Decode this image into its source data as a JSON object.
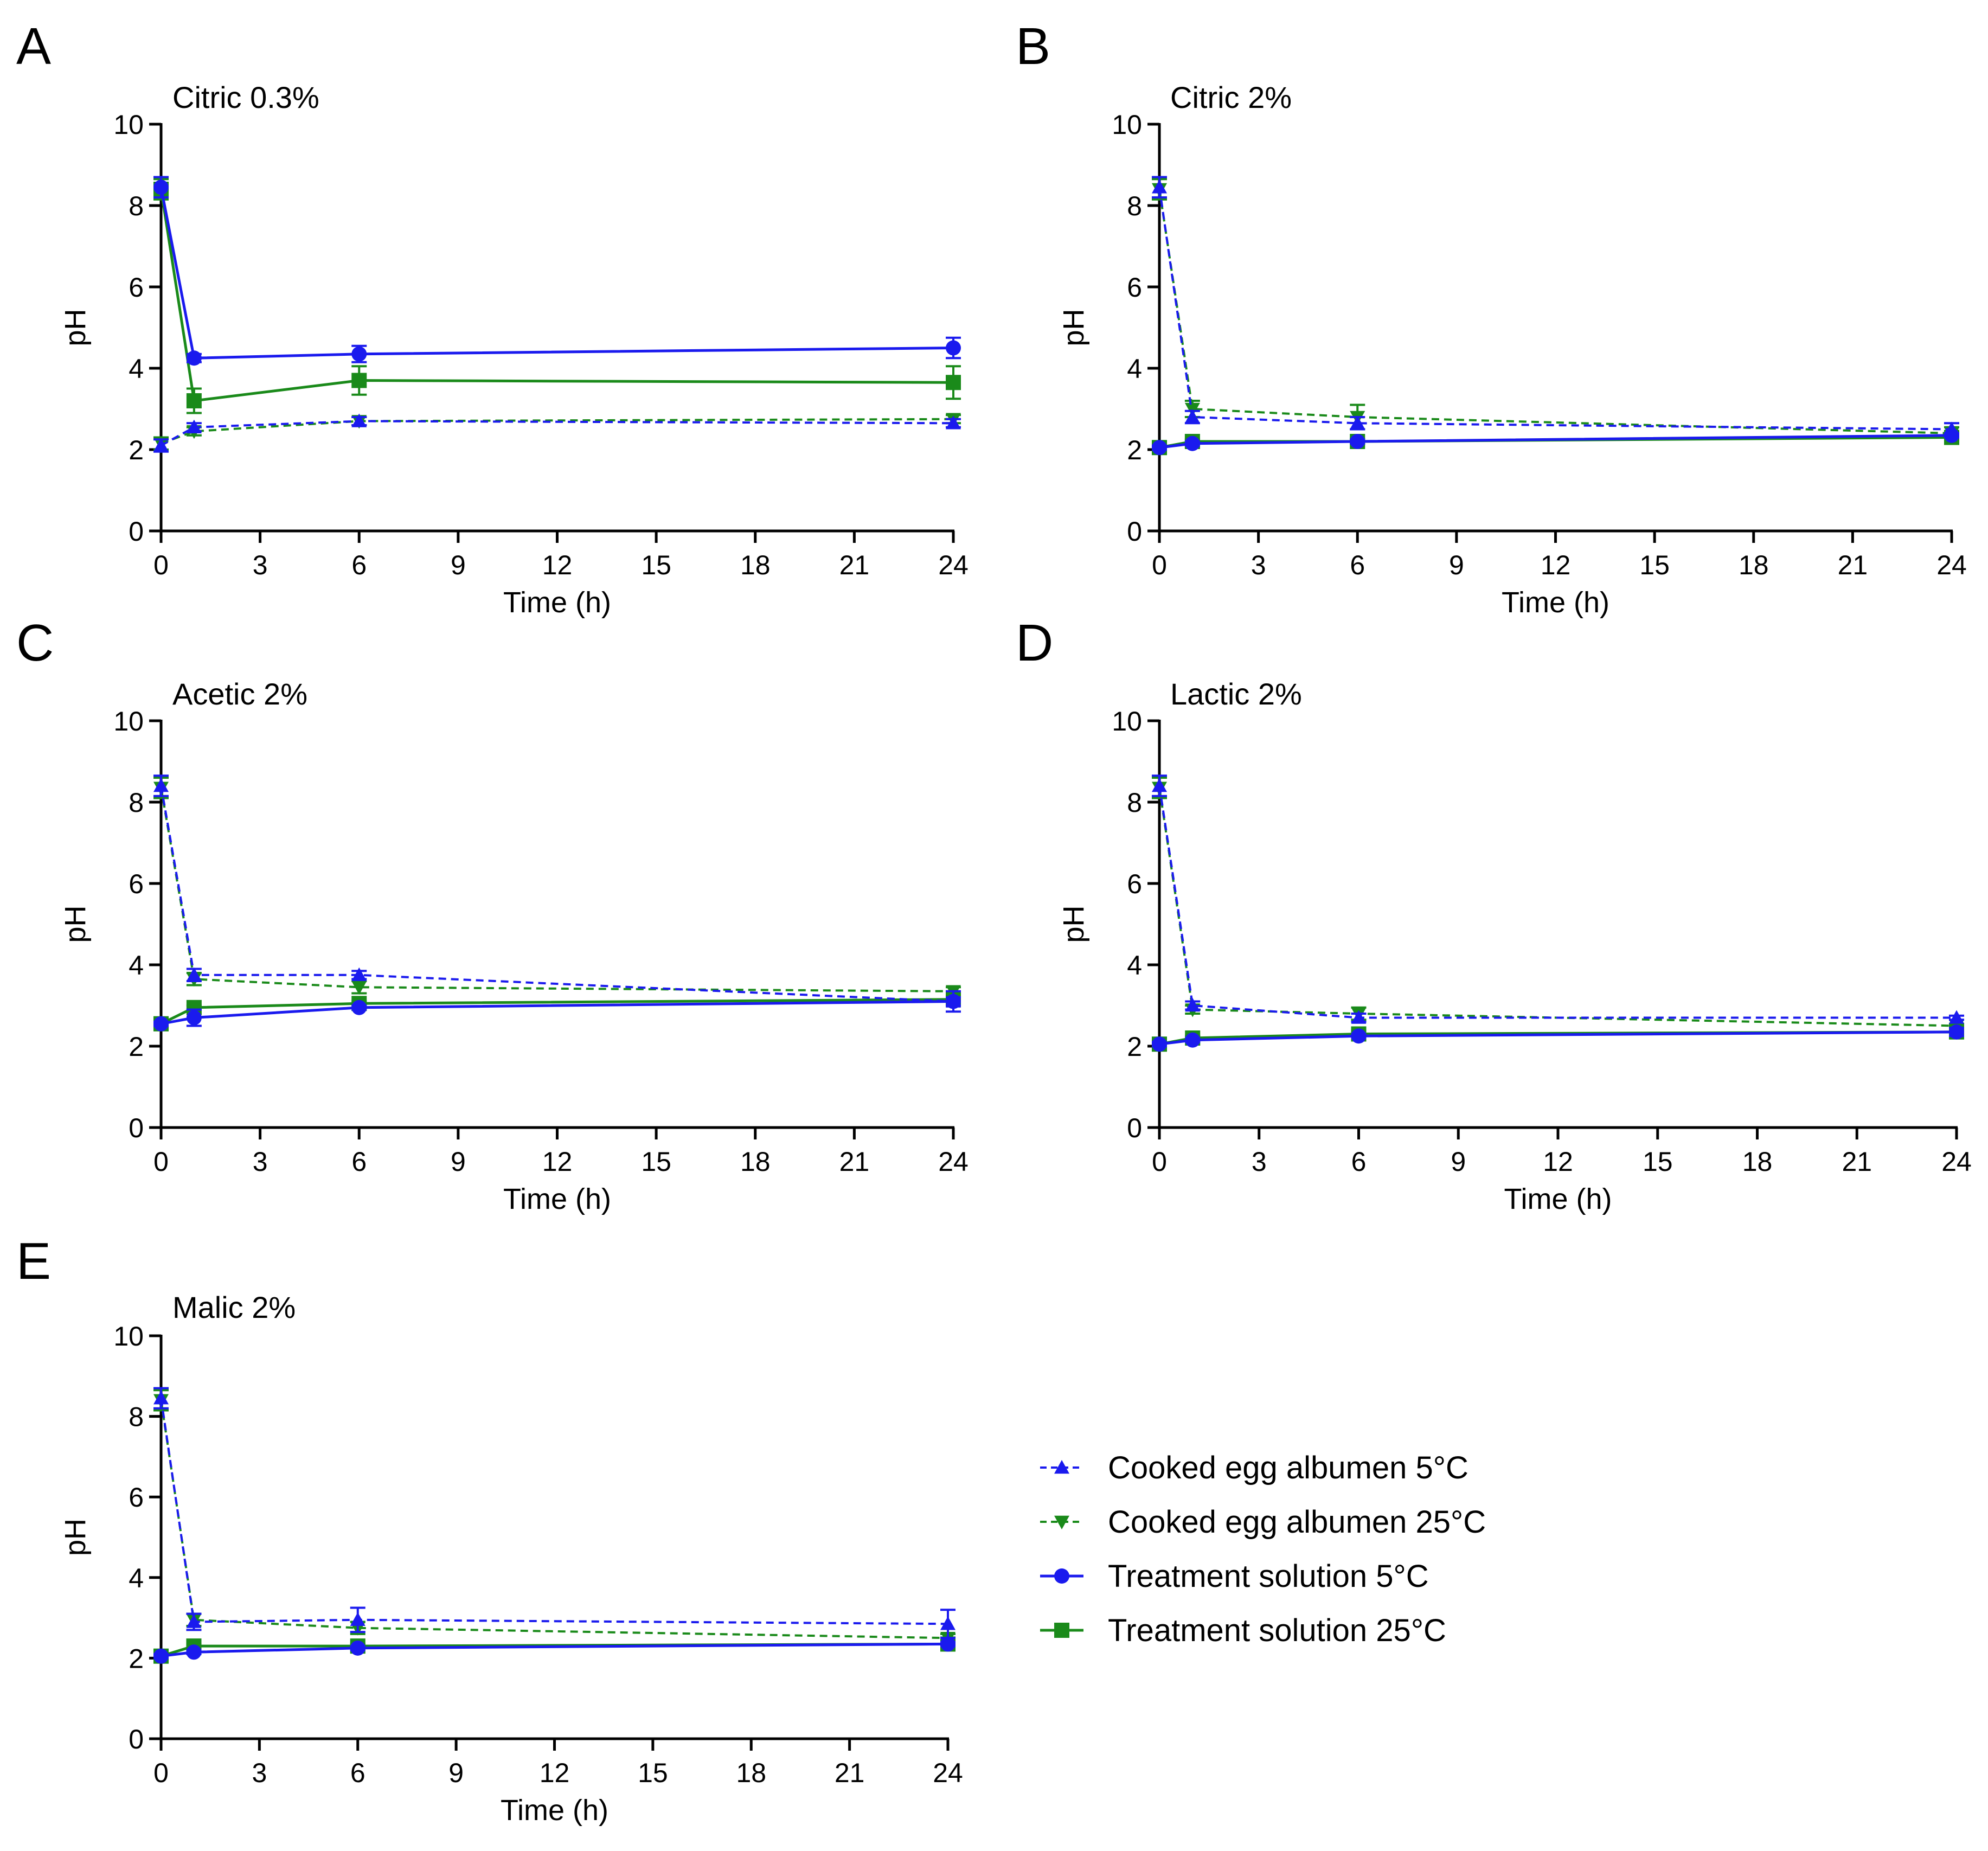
{
  "colors": {
    "blue": "#1a1aee",
    "green": "#1a8a1a"
  },
  "legend": [
    {
      "label": "Cooked egg albumen 5°C",
      "color": "#1a1aee",
      "dash": true,
      "marker": "triangle-up"
    },
    {
      "label": "Cooked egg albumen 25°C",
      "color": "#1a8a1a",
      "dash": true,
      "marker": "triangle-down"
    },
    {
      "label": "Treatment solution 5°C",
      "color": "#1a1aee",
      "dash": false,
      "marker": "circle"
    },
    {
      "label": "Treatment solution 25°C",
      "color": "#1a8a1a",
      "dash": false,
      "marker": "square"
    }
  ],
  "chart_data": [
    {
      "panel": "A",
      "type": "line",
      "title": "Citric 0.3%",
      "xlabel": "Time (h)",
      "ylabel": "pH",
      "xlim": [
        0,
        24
      ],
      "ylim": [
        0,
        10
      ],
      "xticks": [
        0,
        3,
        6,
        9,
        12,
        15,
        18,
        21,
        24
      ],
      "yticks": [
        0,
        2,
        4,
        6,
        8,
        10
      ],
      "x": [
        0,
        1,
        6,
        24
      ],
      "series": [
        {
          "name": "Cooked egg albumen 5°C",
          "values": [
            2.1,
            2.55,
            2.7,
            2.65
          ],
          "err": [
            0.15,
            0.1,
            0.1,
            0.1
          ]
        },
        {
          "name": "Cooked egg albumen 25°C",
          "values": [
            2.15,
            2.45,
            2.7,
            2.75
          ],
          "err": [
            0.15,
            0.1,
            0.1,
            0.1
          ]
        },
        {
          "name": "Treatment solution 5°C",
          "values": [
            8.45,
            4.25,
            4.35,
            4.5
          ],
          "err": [
            0.25,
            0.1,
            0.2,
            0.25
          ]
        },
        {
          "name": "Treatment solution 25°C",
          "values": [
            8.4,
            3.2,
            3.7,
            3.65
          ],
          "err": [
            0.25,
            0.3,
            0.35,
            0.4
          ]
        }
      ]
    },
    {
      "panel": "B",
      "type": "line",
      "title": "Citric 2%",
      "xlabel": "Time (h)",
      "ylabel": "pH",
      "xlim": [
        0,
        24
      ],
      "ylim": [
        0,
        10
      ],
      "xticks": [
        0,
        3,
        6,
        9,
        12,
        15,
        18,
        21,
        24
      ],
      "yticks": [
        0,
        2,
        4,
        6,
        8,
        10
      ],
      "x": [
        0,
        1,
        6,
        24
      ],
      "series": [
        {
          "name": "Cooked egg albumen 5°C",
          "values": [
            8.45,
            2.8,
            2.65,
            2.5
          ],
          "err": [
            0.25,
            0.15,
            0.15,
            0.15
          ]
        },
        {
          "name": "Cooked egg albumen 25°C",
          "values": [
            8.4,
            3.0,
            2.8,
            2.4
          ],
          "err": [
            0.25,
            0.2,
            0.3,
            0.15
          ]
        },
        {
          "name": "Treatment solution 5°C",
          "values": [
            2.05,
            2.15,
            2.2,
            2.35
          ],
          "err": [
            0.05,
            0.05,
            0.05,
            0.05
          ]
        },
        {
          "name": "Treatment solution 25°C",
          "values": [
            2.05,
            2.2,
            2.2,
            2.3
          ],
          "err": [
            0.05,
            0.05,
            0.05,
            0.05
          ]
        }
      ]
    },
    {
      "panel": "C",
      "type": "line",
      "title": "Acetic 2%",
      "xlabel": "Time (h)",
      "ylabel": "pH",
      "xlim": [
        0,
        24
      ],
      "ylim": [
        0,
        10
      ],
      "xticks": [
        0,
        3,
        6,
        9,
        12,
        15,
        18,
        21,
        24
      ],
      "yticks": [
        0,
        2,
        4,
        6,
        8,
        10
      ],
      "x": [
        0,
        1,
        6,
        24
      ],
      "series": [
        {
          "name": "Cooked egg albumen 5°C",
          "values": [
            8.4,
            3.75,
            3.75,
            3.1
          ],
          "err": [
            0.25,
            0.15,
            0.1,
            0.1
          ]
        },
        {
          "name": "Cooked egg albumen 25°C",
          "values": [
            8.35,
            3.65,
            3.45,
            3.35
          ],
          "err": [
            0.25,
            0.15,
            0.15,
            0.1
          ]
        },
        {
          "name": "Treatment solution 5°C",
          "values": [
            2.55,
            2.7,
            2.95,
            3.1
          ],
          "err": [
            0.05,
            0.2,
            0.05,
            0.25
          ]
        },
        {
          "name": "Treatment solution 25°C",
          "values": [
            2.55,
            2.95,
            3.05,
            3.15
          ],
          "err": [
            0.05,
            0.05,
            0.05,
            0.1
          ]
        }
      ]
    },
    {
      "panel": "D",
      "type": "line",
      "title": "Lactic 2%",
      "xlabel": "Time (h)",
      "ylabel": "pH",
      "xlim": [
        0,
        24
      ],
      "ylim": [
        0,
        10
      ],
      "xticks": [
        0,
        3,
        6,
        9,
        12,
        15,
        18,
        21,
        24
      ],
      "yticks": [
        0,
        2,
        4,
        6,
        8,
        10
      ],
      "x": [
        0,
        1,
        6,
        24
      ],
      "series": [
        {
          "name": "Cooked egg albumen 5°C",
          "values": [
            8.4,
            3.0,
            2.7,
            2.7
          ],
          "err": [
            0.25,
            0.1,
            0.1,
            0.05
          ]
        },
        {
          "name": "Cooked egg albumen 25°C",
          "values": [
            8.35,
            2.9,
            2.8,
            2.5
          ],
          "err": [
            0.25,
            0.1,
            0.15,
            0.05
          ]
        },
        {
          "name": "Treatment solution 5°C",
          "values": [
            2.05,
            2.15,
            2.25,
            2.35
          ],
          "err": [
            0.05,
            0.05,
            0.05,
            0.1
          ]
        },
        {
          "name": "Treatment solution 25°C",
          "values": [
            2.05,
            2.2,
            2.3,
            2.35
          ],
          "err": [
            0.05,
            0.05,
            0.05,
            0.1
          ]
        }
      ]
    },
    {
      "panel": "E",
      "type": "line",
      "title": "Malic 2%",
      "xlabel": "Time (h)",
      "ylabel": "pH",
      "xlim": [
        0,
        24
      ],
      "ylim": [
        0,
        10
      ],
      "xticks": [
        0,
        3,
        6,
        9,
        12,
        15,
        18,
        21,
        24
      ],
      "yticks": [
        0,
        2,
        4,
        6,
        8,
        10
      ],
      "x": [
        0,
        1,
        6,
        24
      ],
      "series": [
        {
          "name": "Cooked egg albumen 5°C",
          "values": [
            8.45,
            2.9,
            2.95,
            2.85
          ],
          "err": [
            0.25,
            0.2,
            0.3,
            0.35
          ]
        },
        {
          "name": "Cooked egg albumen 25°C",
          "values": [
            8.4,
            2.95,
            2.75,
            2.5
          ],
          "err": [
            0.25,
            0.15,
            0.15,
            0.1
          ]
        },
        {
          "name": "Treatment solution 5°C",
          "values": [
            2.05,
            2.15,
            2.25,
            2.35
          ],
          "err": [
            0.05,
            0.05,
            0.05,
            0.05
          ]
        },
        {
          "name": "Treatment solution 25°C",
          "values": [
            2.05,
            2.3,
            2.3,
            2.35
          ],
          "err": [
            0.05,
            0.05,
            0.05,
            0.05
          ]
        }
      ]
    }
  ]
}
